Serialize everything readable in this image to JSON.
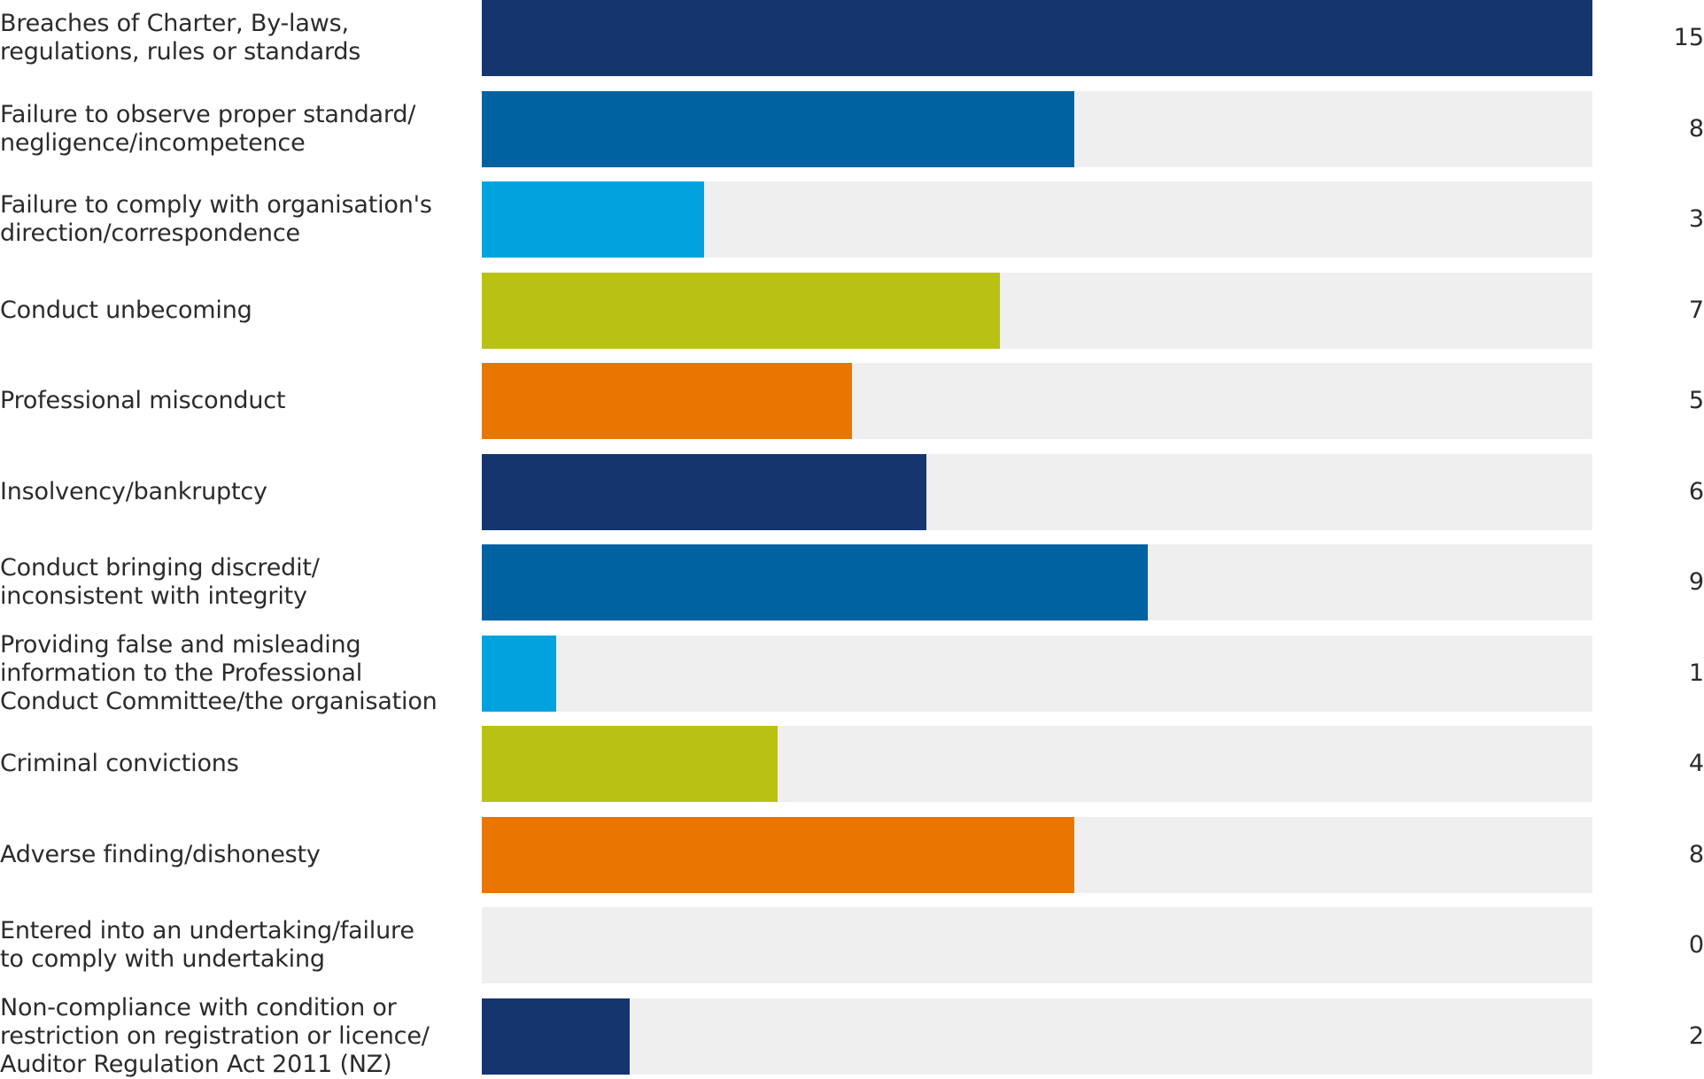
{
  "chart_data": {
    "type": "bar",
    "orientation": "horizontal",
    "title": "",
    "xlabel": "",
    "ylabel": "",
    "grid": false,
    "xlim": [
      0,
      15
    ],
    "categories": [
      "Breaches of Charter, By-laws,\nregulations, rules or standards",
      "Failure to observe proper standard/\nnegligence/incompetence",
      "Failure to comply with organisation's\ndirection/correspondence",
      "Conduct unbecoming",
      "Professional misconduct",
      "Insolvency/bankruptcy",
      "Conduct bringing discredit/\ninconsistent with integrity",
      "Providing false and misleading\ninformation to the Professional\nConduct Committee/the organisation",
      "Criminal convictions",
      "Adverse finding/dishonesty",
      "Entered into an undertaking/failure\nto comply with undertaking",
      "Non-compliance with condition or\nrestriction on registration or licence/\nAuditor Regulation Act 2011 (NZ)"
    ],
    "values": [
      15,
      8,
      3,
      7,
      5,
      6,
      9,
      1,
      4,
      8,
      0,
      2
    ],
    "value_labels": [
      "15",
      "8",
      "3",
      "7",
      "5",
      "6",
      "9",
      "1",
      "4",
      "8",
      "0",
      "2"
    ],
    "colors": [
      "#15356f",
      "#0062a0",
      "#00a3de",
      "#b9c213",
      "#e87600",
      "#15356f",
      "#0062a0",
      "#00a3de",
      "#b9c213",
      "#e87600",
      "#15356f",
      "#15356f"
    ],
    "track_color": "#efefef"
  }
}
